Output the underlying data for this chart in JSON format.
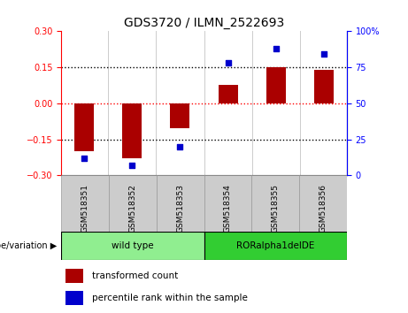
{
  "title": "GDS3720 / ILMN_2522693",
  "samples": [
    "GSM518351",
    "GSM518352",
    "GSM518353",
    "GSM518354",
    "GSM518355",
    "GSM518356"
  ],
  "bar_values": [
    -0.2,
    -0.23,
    -0.105,
    0.075,
    0.152,
    0.14
  ],
  "percentile_values": [
    12,
    7,
    20,
    78,
    88,
    84
  ],
  "bar_color": "#AA0000",
  "dot_color": "#0000CC",
  "ylim_left": [
    -0.3,
    0.3
  ],
  "ylim_right": [
    0,
    100
  ],
  "yticks_left": [
    -0.3,
    -0.15,
    0,
    0.15,
    0.3
  ],
  "yticks_right": [
    0,
    25,
    50,
    75,
    100
  ],
  "ytick_labels_right": [
    "0",
    "25",
    "50",
    "75",
    "100%"
  ],
  "dotted_lines_black": [
    -0.15,
    0.15
  ],
  "dotted_line_red": 0,
  "groups": [
    {
      "label": "wild type",
      "indices": [
        0,
        1,
        2
      ],
      "color": "#90EE90"
    },
    {
      "label": "RORalpha1delDE",
      "indices": [
        3,
        4,
        5
      ],
      "color": "#32CD32"
    }
  ],
  "genotype_label": "genotype/variation",
  "legend_bar_label": "transformed count",
  "legend_dot_label": "percentile rank within the sample",
  "bar_width": 0.4,
  "plot_bg_color": "#ffffff",
  "tick_label_bg": "#d0d0d0"
}
